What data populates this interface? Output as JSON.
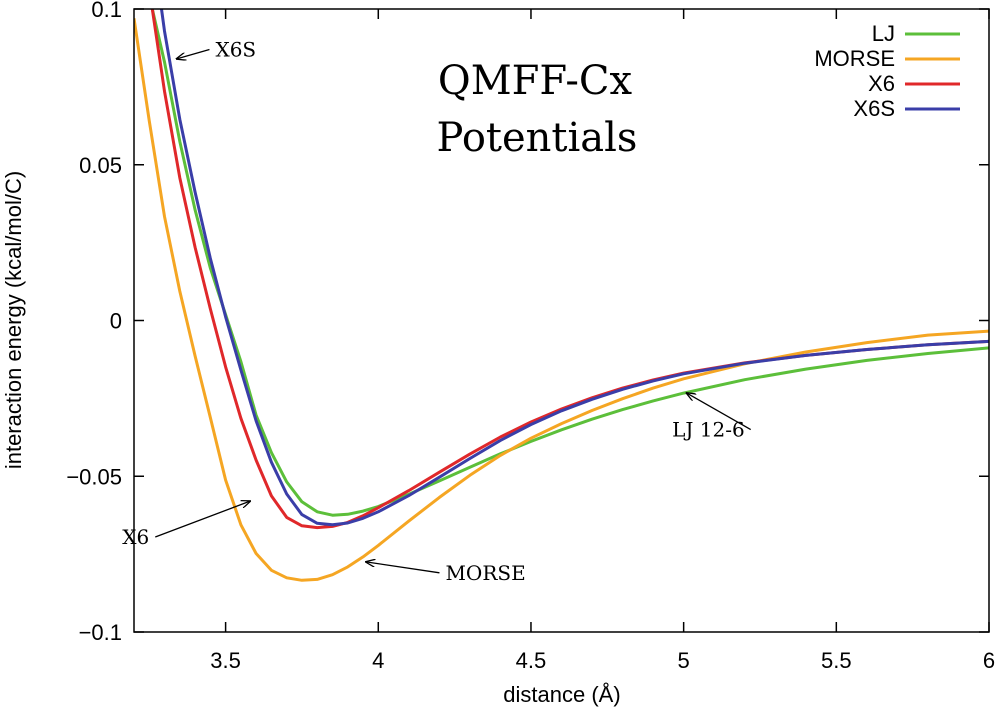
{
  "chart_data": {
    "type": "line",
    "title_lines": [
      "QMFF-Cx",
      "Potentials"
    ],
    "xlabel": "distance (Å)",
    "ylabel": "interaction energy (kcal/mol/C)",
    "xlim": [
      3.2,
      6.0
    ],
    "ylim": [
      -0.1,
      0.1
    ],
    "x_ticks": [
      3.5,
      4,
      4.5,
      5,
      5.5,
      6
    ],
    "x_tick_labels": [
      "3.5",
      "4",
      "4.5",
      "5",
      "5.5",
      "6"
    ],
    "y_ticks": [
      -0.1,
      -0.05,
      0,
      0.05,
      0.1
    ],
    "y_tick_labels": [
      "−0.1",
      "−0.05",
      "0",
      "0.05",
      "0.1"
    ],
    "grid": false,
    "legend_position": "top-right",
    "series": [
      {
        "name": "LJ",
        "color": "#5cbf3a",
        "x": [
          3.26,
          3.3,
          3.35,
          3.4,
          3.45,
          3.5,
          3.55,
          3.6,
          3.65,
          3.7,
          3.75,
          3.8,
          3.85,
          3.9,
          3.95,
          4.0,
          4.1,
          4.2,
          4.3,
          4.4,
          4.5,
          4.6,
          4.7,
          4.8,
          4.9,
          5.0,
          5.2,
          5.4,
          5.6,
          5.8,
          6.0
        ],
        "y": [
          0.1,
          0.083,
          0.0575,
          0.0355,
          0.0169,
          0.0019,
          -0.0132,
          -0.0304,
          -0.0424,
          -0.0518,
          -0.0582,
          -0.0614,
          -0.0625,
          -0.0622,
          -0.0612,
          -0.0597,
          -0.0558,
          -0.0515,
          -0.0471,
          -0.0428,
          -0.0388,
          -0.0351,
          -0.0317,
          -0.0286,
          -0.0258,
          -0.0233,
          -0.019,
          -0.0156,
          -0.0128,
          -0.0106,
          -0.0088
        ]
      },
      {
        "name": "MORSE",
        "color": "#f5a623",
        "x": [
          3.2,
          3.25,
          3.3,
          3.35,
          3.4,
          3.45,
          3.5,
          3.55,
          3.6,
          3.65,
          3.7,
          3.75,
          3.8,
          3.85,
          3.9,
          3.95,
          4.0,
          4.1,
          4.2,
          4.3,
          4.4,
          4.5,
          4.6,
          4.7,
          4.8,
          4.9,
          5.0,
          5.2,
          5.4,
          5.6,
          5.8,
          6.0
        ],
        "y": [
          0.097,
          0.064,
          0.0334,
          0.0094,
          -0.0114,
          -0.0311,
          -0.0512,
          -0.0656,
          -0.0748,
          -0.0802,
          -0.0826,
          -0.0834,
          -0.0831,
          -0.0816,
          -0.0791,
          -0.0759,
          -0.0722,
          -0.0644,
          -0.0568,
          -0.0497,
          -0.0433,
          -0.0378,
          -0.0331,
          -0.0289,
          -0.0251,
          -0.0217,
          -0.0187,
          -0.0139,
          -0.0101,
          -0.0071,
          -0.0047,
          -0.0034
        ]
      },
      {
        "name": "X6",
        "color": "#e0282a",
        "x": [
          3.26,
          3.3,
          3.35,
          3.4,
          3.45,
          3.5,
          3.55,
          3.6,
          3.65,
          3.7,
          3.75,
          3.8,
          3.85,
          3.9,
          3.95,
          4.0,
          4.1,
          4.2,
          4.3,
          4.4,
          4.5,
          4.6,
          4.7,
          4.8,
          4.9,
          5.0,
          5.2,
          5.4,
          5.6,
          5.8,
          6.0
        ],
        "y": [
          0.1,
          0.0736,
          0.0458,
          0.0235,
          0.0038,
          -0.0149,
          -0.0314,
          -0.0448,
          -0.0563,
          -0.0632,
          -0.0659,
          -0.0665,
          -0.0661,
          -0.0648,
          -0.0627,
          -0.0601,
          -0.0546,
          -0.0487,
          -0.0429,
          -0.0374,
          -0.0326,
          -0.0284,
          -0.0248,
          -0.0217,
          -0.0191,
          -0.0169,
          -0.0136,
          -0.0112,
          -0.0093,
          -0.0078,
          -0.0067
        ]
      },
      {
        "name": "X6S",
        "color": "#3a3ea8",
        "x": [
          3.29,
          3.3,
          3.35,
          3.4,
          3.45,
          3.5,
          3.55,
          3.6,
          3.65,
          3.7,
          3.75,
          3.8,
          3.85,
          3.9,
          3.95,
          4.0,
          4.1,
          4.2,
          4.3,
          4.4,
          4.5,
          4.6,
          4.7,
          4.8,
          4.9,
          5.0,
          5.2,
          5.4,
          5.6,
          5.8,
          6.0
        ],
        "y": [
          0.1,
          0.0929,
          0.0646,
          0.0412,
          0.02,
          0.0012,
          -0.0159,
          -0.0322,
          -0.0455,
          -0.0557,
          -0.0623,
          -0.0651,
          -0.0656,
          -0.065,
          -0.0635,
          -0.0614,
          -0.0562,
          -0.0503,
          -0.0443,
          -0.0385,
          -0.0334,
          -0.029,
          -0.0253,
          -0.0221,
          -0.0194,
          -0.0171,
          -0.0137,
          -0.0112,
          -0.0093,
          -0.0078,
          -0.0067
        ]
      }
    ],
    "annotations": [
      {
        "text": "X6S",
        "text_x": 3.6,
        "text_y": 0.087,
        "anchor": "end",
        "arrow_to_x": 3.34,
        "arrow_to_y": 0.084
      },
      {
        "text": "LJ 12-6",
        "text_x": 5.2,
        "text_y": -0.035,
        "anchor": "end",
        "arrow_to_x": 5.01,
        "arrow_to_y": -0.0233
      },
      {
        "text": "X6",
        "text_x": 3.25,
        "text_y": -0.0695,
        "anchor": "end",
        "arrow_to_x": 3.58,
        "arrow_to_y": -0.058
      },
      {
        "text": "MORSE",
        "text_x": 4.22,
        "text_y": -0.081,
        "anchor": "start",
        "arrow_to_x": 3.96,
        "arrow_to_y": -0.0775
      }
    ]
  }
}
